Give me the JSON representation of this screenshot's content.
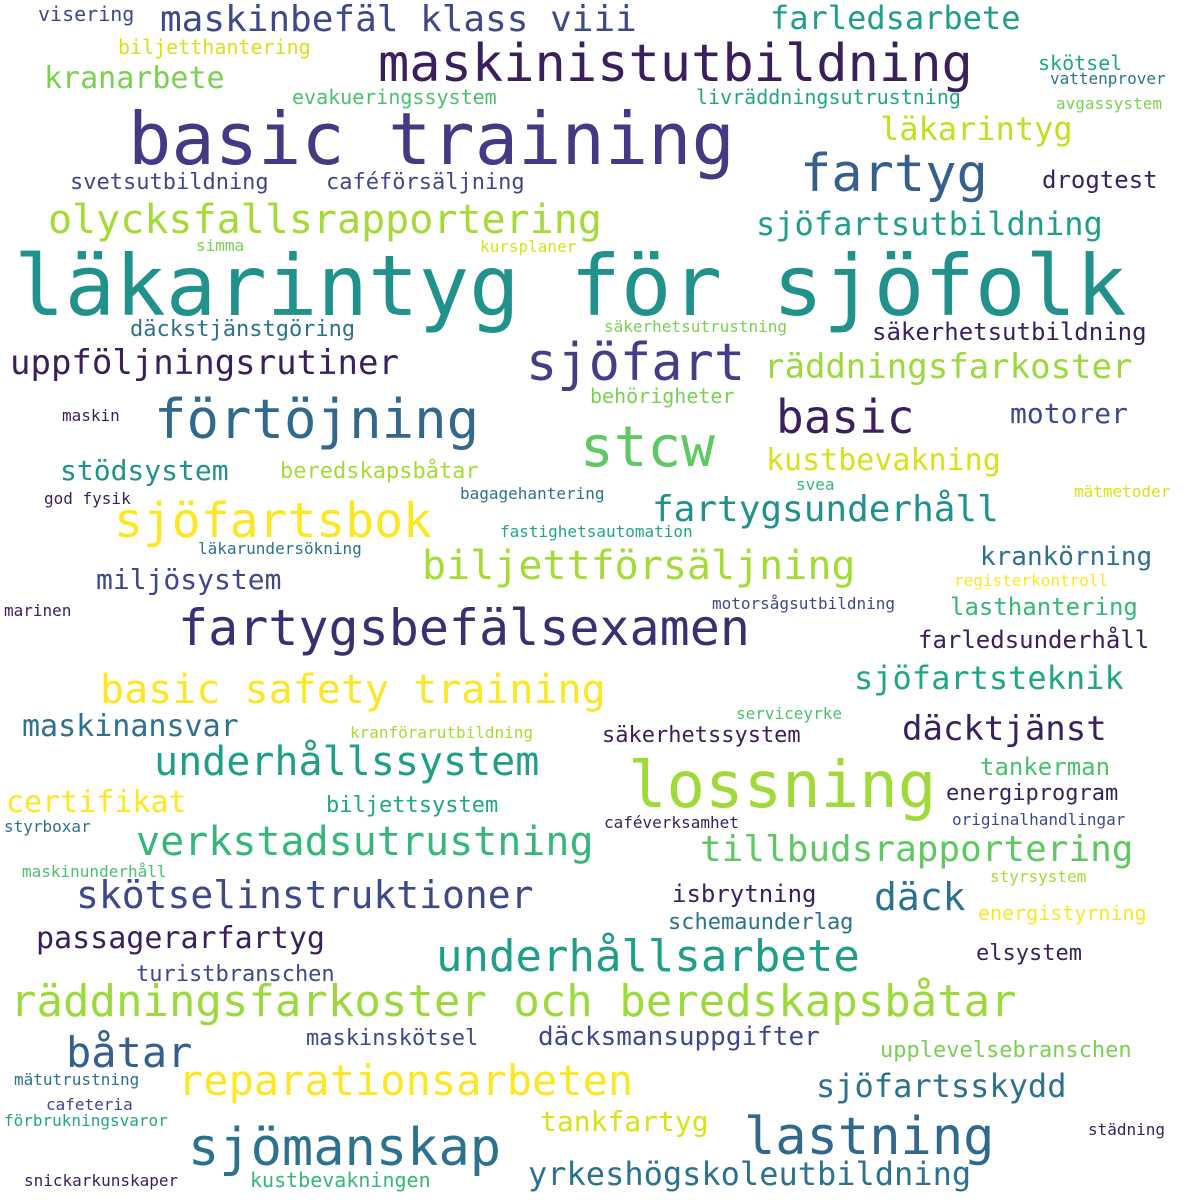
{
  "words": [
    {
      "text": "läkarintyg för sjöfolk",
      "color": "#21918c"
    },
    {
      "text": "basic training",
      "color": "#443983"
    },
    {
      "text": "maskinistutbildning",
      "color": "#3b1f5d"
    },
    {
      "text": "fartygsbefälsexamen",
      "color": "#3b2f73"
    },
    {
      "text": "räddningsfarkoster och beredskapsbåtar",
      "color": "#9bd93c"
    },
    {
      "text": "lossning",
      "color": "#a0da39"
    },
    {
      "text": "lastning",
      "color": "#31688e"
    },
    {
      "text": "basic safety training",
      "color": "#fde725"
    },
    {
      "text": "förtöjning",
      "color": "#31688e"
    },
    {
      "text": "reparationsarbeten",
      "color": "#fde725"
    },
    {
      "text": "sjömanskap",
      "color": "#2c728e"
    },
    {
      "text": "stcw",
      "color": "#5ec962"
    },
    {
      "text": "sjöfartsbok",
      "color": "#fde725"
    },
    {
      "text": "sjöfart",
      "color": "#433e85"
    },
    {
      "text": "fartyg",
      "color": "#355f8d"
    },
    {
      "text": "olycksfallsrapportering",
      "color": "#a5db36"
    },
    {
      "text": "underhållsarbete",
      "color": "#1f9e89"
    },
    {
      "text": "underhållssystem",
      "color": "#1f9e89"
    },
    {
      "text": "biljettförsäljning",
      "color": "#a5db36"
    },
    {
      "text": "basic",
      "color": "#3b1f5d"
    },
    {
      "text": "maskinbefäl klass viii",
      "color": "#3e4989"
    },
    {
      "text": "skötselinstruktioner",
      "color": "#3e4989"
    },
    {
      "text": "verkstadsutrustning",
      "color": "#35b779"
    },
    {
      "text": "räddningsfarkoster",
      "color": "#9bd93c"
    },
    {
      "text": "farledsarbete",
      "color": "#1f9e89"
    },
    {
      "text": "uppföljningsrutiner",
      "color": "#3b1f5d"
    },
    {
      "text": "båtar",
      "color": "#355f8d"
    },
    {
      "text": "tillbudsrapportering",
      "color": "#5ec962"
    },
    {
      "text": "fartygsunderhåll",
      "color": "#21918c"
    },
    {
      "text": "sjöfartsutbildning",
      "color": "#1f9e89"
    },
    {
      "text": "sjöfartsteknik",
      "color": "#21a685"
    },
    {
      "text": "däcktjänst",
      "color": "#3b1f5d"
    },
    {
      "text": "däck",
      "color": "#2c728e"
    },
    {
      "text": "sjöfartsskydd",
      "color": "#2c728e"
    },
    {
      "text": "yrkeshögskoleutbildning",
      "color": "#2c728e"
    },
    {
      "text": "läkarintyg",
      "color": "#c2df23"
    },
    {
      "text": "passagerarfartyg",
      "color": "#3b1f5d"
    },
    {
      "text": "kranarbete",
      "color": "#7ad151"
    },
    {
      "text": "maskinansvar",
      "color": "#2c728e"
    },
    {
      "text": "miljösystem",
      "color": "#3e4989"
    },
    {
      "text": "kustbevakning",
      "color": "#d8e219"
    },
    {
      "text": "certifikat",
      "color": "#fde725"
    },
    {
      "text": "motorer",
      "color": "#3e4989"
    },
    {
      "text": "stödsystem",
      "color": "#21918c"
    },
    {
      "text": "krankörning",
      "color": "#2c728e"
    },
    {
      "text": "däcksmansuppgifter",
      "color": "#3e4989"
    },
    {
      "text": "tankfartyg",
      "color": "#d8e219"
    },
    {
      "text": "lasthantering",
      "color": "#35b779"
    },
    {
      "text": "säkerhetsutbildning",
      "color": "#3b1f5d"
    },
    {
      "text": "säkerhetssystem",
      "color": "#3b1f5d"
    },
    {
      "text": "maskinskötsel",
      "color": "#3e4989"
    },
    {
      "text": "upplevelsebranschen",
      "color": "#7ad151"
    },
    {
      "text": "isbrytning",
      "color": "#3b1f5d"
    },
    {
      "text": "energiprogram",
      "color": "#3b1f5d"
    },
    {
      "text": "farledsunderhåll",
      "color": "#3b1f5d"
    },
    {
      "text": "tankerman",
      "color": "#4ac16d"
    },
    {
      "text": "drogtest",
      "color": "#3b1f5d"
    },
    {
      "text": "elsystem",
      "color": "#3b1f5d"
    },
    {
      "text": "caféförsäljning",
      "color": "#3e4989"
    },
    {
      "text": "svetsutbildning",
      "color": "#3e4989"
    },
    {
      "text": "beredskapsbåtar",
      "color": "#a5db36"
    },
    {
      "text": "biljettsystem",
      "color": "#21a685"
    },
    {
      "text": "schemaunderlag",
      "color": "#2c728e"
    },
    {
      "text": "turistbranschen",
      "color": "#3e4989"
    },
    {
      "text": "kustbevakningen",
      "color": "#35b779"
    },
    {
      "text": "däckstjänstgöring",
      "color": "#2c728e"
    },
    {
      "text": "evakueringssystem",
      "color": "#4ac16d"
    },
    {
      "text": "livräddningsutrustning",
      "color": "#21a685"
    },
    {
      "text": "biljetthantering",
      "color": "#d8e219"
    },
    {
      "text": "behörigheter",
      "color": "#7ad151"
    },
    {
      "text": "energistyrning",
      "color": "#fde725"
    },
    {
      "text": "skötsel",
      "color": "#21a685"
    },
    {
      "text": "visering",
      "color": "#3e4989"
    },
    {
      "text": "vattenprover",
      "color": "#2c728e"
    },
    {
      "text": "avgassystem",
      "color": "#7ad151"
    },
    {
      "text": "kursplaner",
      "color": "#d8e219"
    },
    {
      "text": "simma",
      "color": "#7ad151"
    },
    {
      "text": "säkerhetsutrustning",
      "color": "#7ad151"
    },
    {
      "text": "maskin",
      "color": "#3b1f5d"
    },
    {
      "text": "god fysik",
      "color": "#3b1f5d"
    },
    {
      "text": "bagagehantering",
      "color": "#2c728e"
    },
    {
      "text": "svea",
      "color": "#35b779"
    },
    {
      "text": "mätmetoder",
      "color": "#d8e219"
    },
    {
      "text": "fastighetsautomation",
      "color": "#21a685"
    },
    {
      "text": "läkarundersökning",
      "color": "#2c728e"
    },
    {
      "text": "registerkontroll",
      "color": "#fde725"
    },
    {
      "text": "motorsågsutbildning",
      "color": "#3e4989"
    },
    {
      "text": "marinen",
      "color": "#3b1f5d"
    },
    {
      "text": "serviceyrke",
      "color": "#4ac16d"
    },
    {
      "text": "kranförarutbildning",
      "color": "#a5db36"
    },
    {
      "text": "styrboxar",
      "color": "#2c728e"
    },
    {
      "text": "caféverksamhet",
      "color": "#3b1f5d"
    },
    {
      "text": "originalhandlingar",
      "color": "#3e4989"
    },
    {
      "text": "maskinunderhåll",
      "color": "#4ac16d"
    },
    {
      "text": "styrsystem",
      "color": "#a5db36"
    },
    {
      "text": "mätutrustning",
      "color": "#2c728e"
    },
    {
      "text": "cafeteria",
      "color": "#3e4989"
    },
    {
      "text": "förbrukningsvaror",
      "color": "#21a685"
    },
    {
      "text": "städning",
      "color": "#3b1f5d"
    },
    {
      "text": "snickarkunskaper",
      "color": "#3b1f5d"
    }
  ]
}
